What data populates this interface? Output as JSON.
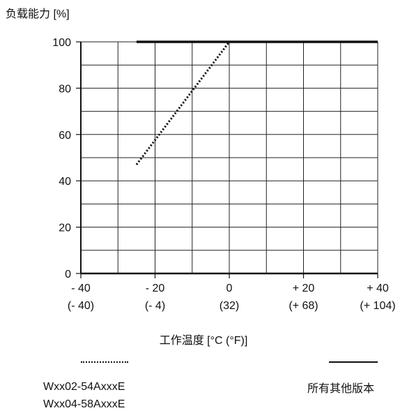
{
  "chart_data": {
    "type": "line",
    "ylabel": "负载能力 [%]",
    "xlabel": "工作温度 [°C (°F)]",
    "x_ticks": [
      {
        "value": -40,
        "label": "- 40",
        "sub": "(- 40)"
      },
      {
        "value": -20,
        "label": "- 20",
        "sub": "(- 4)"
      },
      {
        "value": 0,
        "label": "0",
        "sub": "(32)"
      },
      {
        "value": 20,
        "label": "+ 20",
        "sub": "(+ 68)"
      },
      {
        "value": 40,
        "label": "+ 40",
        "sub": "(+ 104)"
      }
    ],
    "y_ticks": [
      0,
      20,
      40,
      60,
      80,
      100
    ],
    "xlim": [
      -40,
      40
    ],
    "ylim": [
      0,
      100
    ],
    "grid": true,
    "series": [
      {
        "name_lines": [
          "Wxx02-54AxxxE",
          "Wxx04-58AxxxE"
        ],
        "style": "dotted",
        "x": [
          -25,
          0
        ],
        "y": [
          47,
          100
        ]
      },
      {
        "name_lines": [
          "所有其他版本"
        ],
        "style": "solid",
        "x": [
          -25,
          40
        ],
        "y": [
          100,
          100
        ]
      }
    ]
  }
}
